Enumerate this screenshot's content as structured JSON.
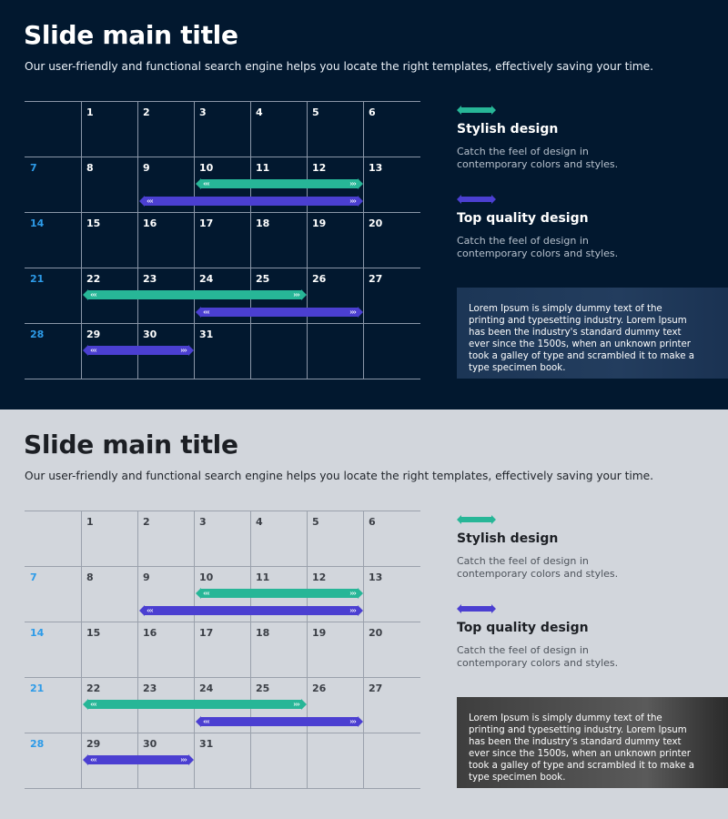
{
  "slides": [
    {
      "theme": "dark",
      "title": "Slide main title",
      "subtitle": "Our user-friendly and functional search engine helps you locate the right templates, effectively saving your time.",
      "calendar": {
        "week_starts": [
          "7",
          "14",
          "21",
          "28"
        ],
        "rows": [
          [
            "",
            "1",
            "2",
            "3",
            "4",
            "5",
            "6"
          ],
          [
            "7",
            "8",
            "9",
            "10",
            "11",
            "12",
            "13"
          ],
          [
            "14",
            "15",
            "16",
            "17",
            "18",
            "19",
            "20"
          ],
          [
            "21",
            "22",
            "23",
            "24",
            "25",
            "26",
            "27"
          ],
          [
            "28",
            "29",
            "30",
            "31",
            "",
            "",
            ""
          ]
        ]
      },
      "features": [
        {
          "title": "Stylish design",
          "desc": "Catch the feel of design in contemporary colors and styles.",
          "color": "#27b697"
        },
        {
          "title": "Top quality design",
          "desc": "Catch the feel of design in contemporary colors and styles.",
          "color": "#4b3fd1"
        }
      ],
      "lorem": "Lorem Ipsum is simply dummy text of the printing and typesetting industry. Lorem Ipsum has been the industry's standard dummy text ever since the 1500s, when an unknown printer took a galley of type and scrambled it to make a type specimen book."
    },
    {
      "theme": "light",
      "title": "Slide main title",
      "subtitle": "Our user-friendly and functional search engine helps you locate the right templates, effectively saving your time.",
      "calendar": {
        "week_starts": [
          "7",
          "14",
          "21",
          "28"
        ],
        "rows": [
          [
            "",
            "1",
            "2",
            "3",
            "4",
            "5",
            "6"
          ],
          [
            "7",
            "8",
            "9",
            "10",
            "11",
            "12",
            "13"
          ],
          [
            "14",
            "15",
            "16",
            "17",
            "18",
            "19",
            "20"
          ],
          [
            "21",
            "22",
            "23",
            "24",
            "25",
            "26",
            "27"
          ],
          [
            "28",
            "29",
            "30",
            "31",
            "",
            "",
            ""
          ]
        ]
      },
      "features": [
        {
          "title": "Stylish design",
          "desc": "Catch the feel of design in contemporary colors and styles.",
          "color": "#27b697"
        },
        {
          "title": "Top quality design",
          "desc": "Catch the feel of design in contemporary colors and styles.",
          "color": "#4b3fd1"
        }
      ],
      "lorem": "Lorem Ipsum is simply dummy text of the printing and typesetting industry. Lorem Ipsum has been the industry's standard dummy text ever since the 1500s, when an unknown printer took a galley of type and scrambled it to make a type specimen book."
    }
  ],
  "event_bars": [
    {
      "week": 1,
      "start_day": "10",
      "end_day": "13",
      "color": "#27b697"
    },
    {
      "week": 1,
      "start_day": "9",
      "end_day": "13",
      "color": "#4b3fd1"
    },
    {
      "week": 3,
      "start_day": "22",
      "end_day": "26",
      "color": "#27b697"
    },
    {
      "week": 3,
      "start_day": "24",
      "end_day": "27",
      "color": "#4b3fd1"
    },
    {
      "week": 4,
      "start_day": "29",
      "end_day": "31",
      "color": "#4b3fd1"
    }
  ]
}
